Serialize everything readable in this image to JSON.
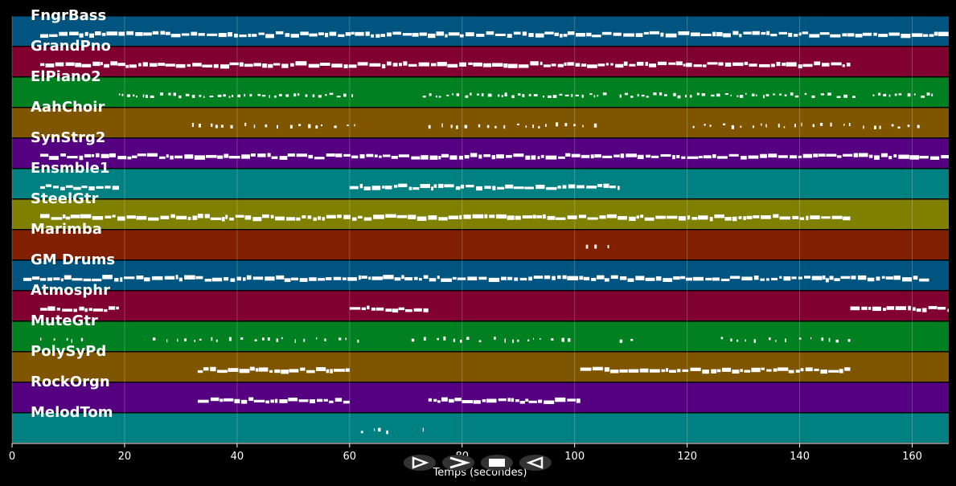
{
  "chart_data": {
    "type": "piano-roll",
    "xlabel": "Temps (secondes)",
    "xlim": [
      0,
      166.5
    ],
    "xticks": [
      0,
      20,
      40,
      60,
      80,
      100,
      120,
      140,
      160
    ],
    "xtick_labels": [
      "0",
      "20",
      "40",
      "60",
      "80",
      "100",
      "120",
      "140",
      "160"
    ],
    "grid": true,
    "tracks": [
      {
        "name": "FngrBass",
        "color": "#005580",
        "density": "high",
        "segments": [
          [
            5,
            166.5
          ]
        ]
      },
      {
        "name": "GrandPno",
        "color": "#800030",
        "density": "high",
        "segments": [
          [
            5,
            149
          ]
        ]
      },
      {
        "name": "ElPiano2",
        "color": "#008020",
        "density": "medium",
        "segments": [
          [
            19,
            61
          ],
          [
            73,
            88
          ],
          [
            87,
            106
          ],
          [
            108,
            150
          ],
          [
            153,
            164
          ]
        ]
      },
      {
        "name": "AahChoir",
        "color": "#805500",
        "density": "low",
        "segments": [
          [
            32,
            61
          ],
          [
            74,
            104
          ],
          [
            121,
            162
          ]
        ]
      },
      {
        "name": "SynStrg2",
        "color": "#550080",
        "density": "high",
        "segments": [
          [
            5,
            166.5
          ]
        ]
      },
      {
        "name": "Ensmble1",
        "color": "#008080",
        "density": "high",
        "segments": [
          [
            5,
            19
          ],
          [
            60,
            108
          ]
        ]
      },
      {
        "name": "SteelGtr",
        "color": "#808000",
        "density": "high",
        "segments": [
          [
            5,
            149
          ]
        ]
      },
      {
        "name": "Marimba",
        "color": "#802000",
        "density": "low",
        "segments": [
          [
            102,
            108
          ]
        ]
      },
      {
        "name": "GM Drums",
        "color": "#005580",
        "density": "high",
        "segments": [
          [
            2,
            163
          ]
        ]
      },
      {
        "name": "Atmosphr",
        "color": "#800030",
        "density": "high",
        "segments": [
          [
            5,
            19
          ],
          [
            60,
            74
          ],
          [
            149,
            166.5
          ]
        ]
      },
      {
        "name": "MuteGtr",
        "color": "#008020",
        "density": "low",
        "segments": [
          [
            5,
            13
          ],
          [
            25,
            62
          ],
          [
            71,
            101
          ],
          [
            108,
            112
          ],
          [
            126,
            149
          ]
        ]
      },
      {
        "name": "PolySyPd",
        "color": "#805500",
        "density": "high",
        "segments": [
          [
            33,
            60
          ],
          [
            101,
            149
          ]
        ]
      },
      {
        "name": "RockOrgn",
        "color": "#550080",
        "density": "high",
        "segments": [
          [
            33,
            60
          ],
          [
            74,
            101
          ]
        ]
      },
      {
        "name": "MelodTom",
        "color": "#008080",
        "density": "low",
        "segments": [
          [
            62,
            67
          ],
          [
            73,
            74
          ]
        ]
      }
    ]
  },
  "controls": [
    {
      "name": "play-button",
      "icon": "play-icon"
    },
    {
      "name": "forward-button",
      "icon": "forward-icon"
    },
    {
      "name": "stop-button",
      "icon": "stop-icon"
    },
    {
      "name": "back-button",
      "icon": "back-icon"
    }
  ]
}
